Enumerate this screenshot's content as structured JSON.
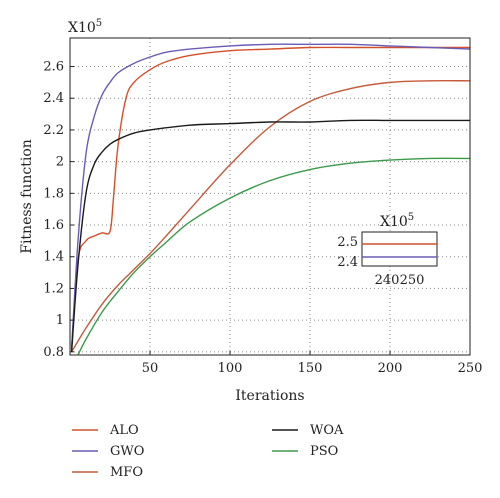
{
  "chart_data": {
    "type": "line",
    "xlabel": "Iterations",
    "ylabel": "Fitness function",
    "y_multiplier_label": {
      "base": "X10",
      "exp": "5"
    },
    "xlim": [
      0,
      250
    ],
    "ylim": [
      0.78,
      2.78
    ],
    "x_ticks": [
      50,
      100,
      150,
      200,
      250
    ],
    "x_tick_labels": [
      "50",
      "100",
      "150",
      "200",
      "250"
    ],
    "y_ticks": [
      0.8,
      1,
      1.2,
      1.4,
      1.6,
      1.8,
      2,
      2.2,
      2.4,
      2.6
    ],
    "y_tick_labels": [
      "0.8",
      "1",
      "1.2",
      "1.4",
      "1.6",
      "1.8",
      "2",
      "2.2",
      "2.4",
      "2.6"
    ],
    "grid": true,
    "legend_placement": "bottom",
    "series": [
      {
        "name": "ALO",
        "color": "#d4502a",
        "x": [
          1,
          5,
          10,
          15,
          20,
          25,
          27,
          30,
          35,
          40,
          50,
          60,
          75,
          100,
          125,
          150,
          175,
          200,
          225,
          250
        ],
        "y": [
          0.82,
          1.38,
          1.5,
          1.53,
          1.55,
          1.56,
          1.75,
          2.1,
          2.4,
          2.5,
          2.58,
          2.63,
          2.67,
          2.7,
          2.71,
          2.72,
          2.72,
          2.72,
          2.72,
          2.72
        ]
      },
      {
        "name": "GWO",
        "color": "#6a5bb5",
        "x": [
          1,
          5,
          10,
          15,
          20,
          25,
          30,
          40,
          50,
          60,
          75,
          100,
          125,
          150,
          175,
          200,
          225,
          250
        ],
        "y": [
          0.82,
          1.5,
          2.05,
          2.28,
          2.42,
          2.5,
          2.56,
          2.62,
          2.66,
          2.69,
          2.71,
          2.73,
          2.74,
          2.74,
          2.74,
          2.73,
          2.72,
          2.71
        ]
      },
      {
        "name": "MFO",
        "color": "#c45a3a",
        "x": [
          1,
          10,
          20,
          30,
          40,
          50,
          60,
          75,
          100,
          125,
          150,
          175,
          200,
          225,
          250
        ],
        "y": [
          0.8,
          0.95,
          1.1,
          1.22,
          1.32,
          1.42,
          1.53,
          1.7,
          1.98,
          2.22,
          2.38,
          2.46,
          2.5,
          2.51,
          2.51
        ]
      },
      {
        "name": "WOA",
        "color": "#1a1a1a",
        "x": [
          1,
          5,
          10,
          15,
          20,
          25,
          30,
          40,
          50,
          75,
          100,
          125,
          150,
          175,
          200,
          225,
          250
        ],
        "y": [
          0.8,
          1.35,
          1.8,
          1.98,
          2.06,
          2.11,
          2.14,
          2.18,
          2.2,
          2.23,
          2.24,
          2.25,
          2.25,
          2.26,
          2.26,
          2.26,
          2.26
        ]
      },
      {
        "name": "PSO",
        "color": "#3a9a4a",
        "x": [
          5,
          10,
          20,
          30,
          40,
          50,
          60,
          75,
          100,
          125,
          150,
          175,
          200,
          225,
          250
        ],
        "y": [
          0.78,
          0.88,
          1.05,
          1.18,
          1.3,
          1.4,
          1.49,
          1.62,
          1.77,
          1.88,
          1.95,
          1.99,
          2.01,
          2.02,
          2.02
        ]
      }
    ],
    "inset": {
      "xlim": [
        230,
        260
      ],
      "ylim": [
        2.38,
        2.55
      ],
      "x_ticks": [
        240,
        250
      ],
      "x_tick_labels": [
        "240",
        "250"
      ],
      "y_ticks": [
        2.4,
        2.5
      ],
      "y_tick_labels": [
        "2.4",
        "2.5"
      ],
      "y_multiplier_label": {
        "base": "X10",
        "exp": "5"
      },
      "series": [
        {
          "name": "MFO",
          "color": "#d4502a",
          "x": [
            230,
            260
          ],
          "y": [
            2.49,
            2.49
          ]
        },
        {
          "name": "GWO",
          "color": "#6a5bb5",
          "x": [
            230,
            260
          ],
          "y": [
            2.425,
            2.425
          ]
        }
      ]
    }
  }
}
